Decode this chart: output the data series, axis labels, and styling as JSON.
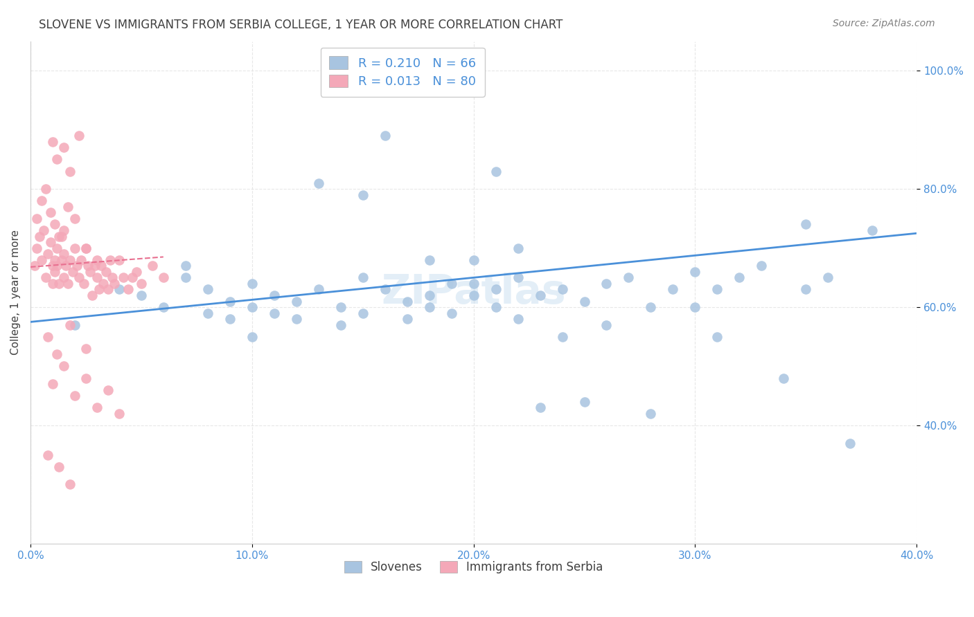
{
  "title": "SLOVENE VS IMMIGRANTS FROM SERBIA COLLEGE, 1 YEAR OR MORE CORRELATION CHART",
  "source": "Source: ZipAtlas.com",
  "xlabel_bottom": "",
  "ylabel": "College, 1 year or more",
  "watermark": "ZIPatlas",
  "legend_r1": "R = 0.210",
  "legend_n1": "N = 66",
  "legend_r2": "R = 0.013",
  "legend_n2": "N = 80",
  "xmin": 0.0,
  "xmax": 0.4,
  "ymin": 0.2,
  "ymax": 1.05,
  "xtick_labels": [
    "0.0%",
    "10.0%",
    "20.0%",
    "30.0%",
    "40.0%"
  ],
  "xtick_values": [
    0.0,
    0.1,
    0.2,
    0.3,
    0.4
  ],
  "ytick_labels": [
    "40.0%",
    "60.0%",
    "80.0%",
    "100.0%"
  ],
  "ytick_values": [
    0.4,
    0.6,
    0.8,
    1.0
  ],
  "blue_color": "#a8c4e0",
  "pink_color": "#f4a8b8",
  "blue_line_color": "#4a90d9",
  "pink_line_color": "#e87090",
  "legend_text_color": "#4a90d9",
  "title_color": "#404040",
  "source_color": "#808080",
  "blue_scatter_x": [
    0.02,
    0.04,
    0.05,
    0.06,
    0.07,
    0.07,
    0.08,
    0.08,
    0.09,
    0.09,
    0.1,
    0.1,
    0.1,
    0.11,
    0.11,
    0.12,
    0.12,
    0.13,
    0.14,
    0.14,
    0.15,
    0.15,
    0.16,
    0.17,
    0.17,
    0.18,
    0.18,
    0.19,
    0.19,
    0.2,
    0.2,
    0.21,
    0.21,
    0.22,
    0.22,
    0.23,
    0.24,
    0.24,
    0.25,
    0.26,
    0.26,
    0.27,
    0.28,
    0.28,
    0.29,
    0.3,
    0.3,
    0.31,
    0.31,
    0.32,
    0.33,
    0.34,
    0.35,
    0.36,
    0.37,
    0.38,
    0.13,
    0.15,
    0.18,
    0.2,
    0.22,
    0.23,
    0.25,
    0.35,
    0.16,
    0.21
  ],
  "blue_scatter_y": [
    0.57,
    0.63,
    0.62,
    0.6,
    0.67,
    0.65,
    0.59,
    0.63,
    0.58,
    0.61,
    0.55,
    0.6,
    0.64,
    0.62,
    0.59,
    0.61,
    0.58,
    0.63,
    0.6,
    0.57,
    0.59,
    0.65,
    0.63,
    0.61,
    0.58,
    0.62,
    0.6,
    0.64,
    0.59,
    0.62,
    0.68,
    0.63,
    0.6,
    0.65,
    0.58,
    0.62,
    0.55,
    0.63,
    0.61,
    0.64,
    0.57,
    0.65,
    0.6,
    0.42,
    0.63,
    0.66,
    0.6,
    0.55,
    0.63,
    0.65,
    0.67,
    0.48,
    0.63,
    0.65,
    0.37,
    0.73,
    0.81,
    0.79,
    0.68,
    0.64,
    0.7,
    0.43,
    0.44,
    0.74,
    0.89,
    0.83
  ],
  "pink_scatter_x": [
    0.002,
    0.003,
    0.004,
    0.005,
    0.006,
    0.007,
    0.008,
    0.009,
    0.01,
    0.01,
    0.011,
    0.011,
    0.012,
    0.012,
    0.013,
    0.014,
    0.014,
    0.015,
    0.015,
    0.016,
    0.017,
    0.018,
    0.019,
    0.02,
    0.021,
    0.022,
    0.023,
    0.024,
    0.025,
    0.026,
    0.027,
    0.028,
    0.029,
    0.03,
    0.031,
    0.032,
    0.033,
    0.034,
    0.035,
    0.036,
    0.037,
    0.038,
    0.04,
    0.042,
    0.044,
    0.046,
    0.048,
    0.05,
    0.055,
    0.06,
    0.003,
    0.005,
    0.007,
    0.009,
    0.011,
    0.013,
    0.015,
    0.017,
    0.02,
    0.025,
    0.03,
    0.01,
    0.012,
    0.015,
    0.018,
    0.022,
    0.008,
    0.012,
    0.018,
    0.025,
    0.01,
    0.015,
    0.02,
    0.025,
    0.03,
    0.035,
    0.04,
    0.008,
    0.013,
    0.018
  ],
  "pink_scatter_y": [
    0.67,
    0.7,
    0.72,
    0.68,
    0.73,
    0.65,
    0.69,
    0.71,
    0.67,
    0.64,
    0.68,
    0.66,
    0.7,
    0.67,
    0.64,
    0.72,
    0.68,
    0.65,
    0.69,
    0.67,
    0.64,
    0.68,
    0.66,
    0.7,
    0.67,
    0.65,
    0.68,
    0.64,
    0.7,
    0.67,
    0.66,
    0.62,
    0.67,
    0.65,
    0.63,
    0.67,
    0.64,
    0.66,
    0.63,
    0.68,
    0.65,
    0.64,
    0.68,
    0.65,
    0.63,
    0.65,
    0.66,
    0.64,
    0.67,
    0.65,
    0.75,
    0.78,
    0.8,
    0.76,
    0.74,
    0.72,
    0.73,
    0.77,
    0.75,
    0.7,
    0.68,
    0.88,
    0.85,
    0.87,
    0.83,
    0.89,
    0.55,
    0.52,
    0.57,
    0.53,
    0.47,
    0.5,
    0.45,
    0.48,
    0.43,
    0.46,
    0.42,
    0.35,
    0.33,
    0.3
  ],
  "blue_line_x": [
    0.0,
    0.4
  ],
  "blue_line_y": [
    0.575,
    0.725
  ],
  "pink_line_x": [
    0.0,
    0.06
  ],
  "pink_line_y": [
    0.668,
    0.685
  ]
}
